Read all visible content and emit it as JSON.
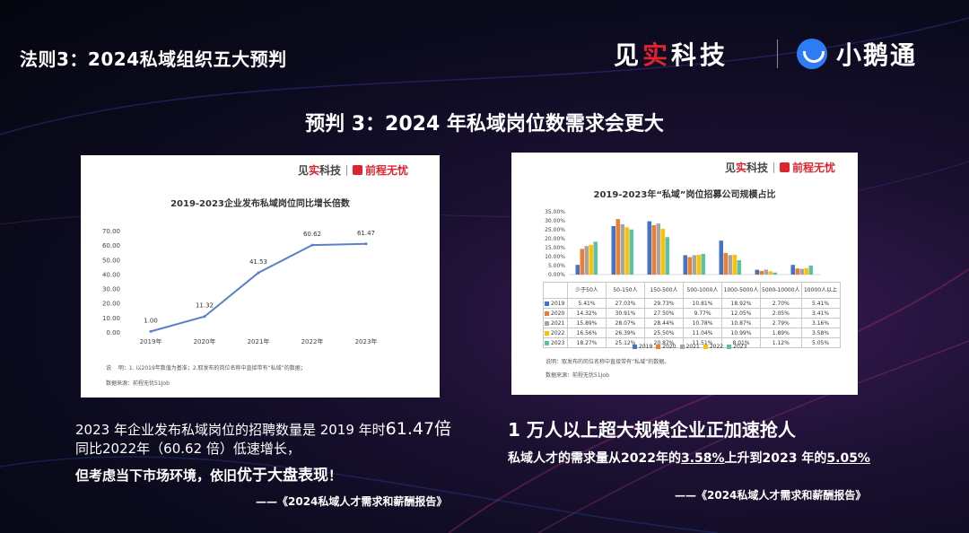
{
  "header": {
    "title": "法则3：2024私域组织五大预判",
    "brand_jianshi_1": "见",
    "brand_jianshi_2": "实",
    "brand_jianshi_3": "科技",
    "brand_xe": "小鹅通"
  },
  "subtitle": "预判 3：2024 年私域岗位数需求会更大",
  "left_panel": {
    "logo_a": "见",
    "logo_b": "实",
    "logo_c": "科技",
    "logo_partner": "前程无忧",
    "note": "说　 明：1. 以2019年数值为基准；2.取发布的岗位名称中直接带有“私域”的数据；",
    "source": "数据来源：前程无忧51Job"
  },
  "right_panel": {
    "logo_a": "见",
    "logo_b": "实",
    "logo_c": "科技",
    "logo_partner": "前程无忧",
    "note": "说明：取发布的岗位名称中直接带有“私域”的数据。",
    "source": "数据来源：前程无忧51Job"
  },
  "chart_data": [
    {
      "type": "line",
      "title": "2019-2023企业发布私域岗位同比增长倍数",
      "categories": [
        "2019年",
        "2020年",
        "2021年",
        "2022年",
        "2023年"
      ],
      "values": [
        1.0,
        11.32,
        41.53,
        60.62,
        61.47
      ],
      "value_labels": [
        "1.00",
        "11.32",
        "41.53",
        "60.62",
        "61.47"
      ],
      "ylim": [
        0,
        70
      ],
      "yticks": [
        "0.00",
        "10.00",
        "20.00",
        "30.00",
        "40.00",
        "50.00",
        "60.00",
        "70.00"
      ],
      "color": "#5b80c8"
    },
    {
      "type": "bar",
      "title": "2019-2023年“私域”岗位招募公司规模占比",
      "categories": [
        "少于50人",
        "50-150人",
        "150-500人",
        "500-1000人",
        "1000-5000人",
        "5000-10000人",
        "10000人以上"
      ],
      "yticks": [
        "0.00%",
        "5.00%",
        "10.00%",
        "15.00%",
        "20.00%",
        "25.00%",
        "30.00%",
        "35.00%"
      ],
      "ylim": [
        0,
        35
      ],
      "series": [
        {
          "name": "2019",
          "color": "#4472c4",
          "values": [
            5.41,
            27.03,
            29.73,
            10.81,
            18.92,
            2.7,
            5.41
          ],
          "labels": [
            "5.41%",
            "27.03%",
            "29.73%",
            "10.81%",
            "18.92%",
            "2.70%",
            "5.41%"
          ]
        },
        {
          "name": "2020",
          "color": "#ed7d31",
          "values": [
            14.32,
            30.91,
            27.5,
            9.77,
            12.05,
            2.05,
            3.41
          ],
          "labels": [
            "14.32%",
            "30.91%",
            "27.50%",
            "9.77%",
            "12.05%",
            "2.05%",
            "3.41%"
          ]
        },
        {
          "name": "2021",
          "color": "#a5a5a5",
          "values": [
            15.89,
            28.07,
            28.44,
            10.78,
            10.87,
            2.79,
            3.16
          ],
          "labels": [
            "15.89%",
            "28.07%",
            "28.44%",
            "10.78%",
            "10.87%",
            "2.79%",
            "3.16%"
          ]
        },
        {
          "name": "2022",
          "color": "#ffc000",
          "values": [
            16.56,
            26.39,
            25.5,
            11.04,
            10.99,
            1.89,
            3.58
          ],
          "labels": [
            "16.56%",
            "26.39%",
            "25.50%",
            "11.04%",
            "10.99%",
            "1.89%",
            "3.58%"
          ]
        },
        {
          "name": "2023",
          "color": "#5bc0a9",
          "values": [
            18.27,
            25.12,
            20.87,
            11.51,
            8.01,
            1.12,
            5.05
          ],
          "labels": [
            "18.27%",
            "25.12%",
            "20.87%",
            "11.51%",
            "8.01%",
            "1.12%",
            "5.05%"
          ]
        }
      ]
    }
  ],
  "left_text": {
    "line1a": "2023 年企业发布私域岗位的招聘数量是 2019 年时",
    "line1b": "61.47倍",
    "line2": "同比2022年（60.62 倍）低速增长，",
    "line3a": "但考虑当下市场环境，依旧",
    "line3b": "优于大盘表现",
    "line3c": "！",
    "source": "——《2024私域人才需求和薪酬报告》"
  },
  "right_text": {
    "line1": "1 万人以上超大规模企业正加速抢人",
    "line2a": "私域人才的需求量从2022年的",
    "line2b": "3.58%",
    "line2c": "上升到2023 年的",
    "line2d": "5.05%",
    "source": "——《2024私域人才需求和薪酬报告》"
  }
}
